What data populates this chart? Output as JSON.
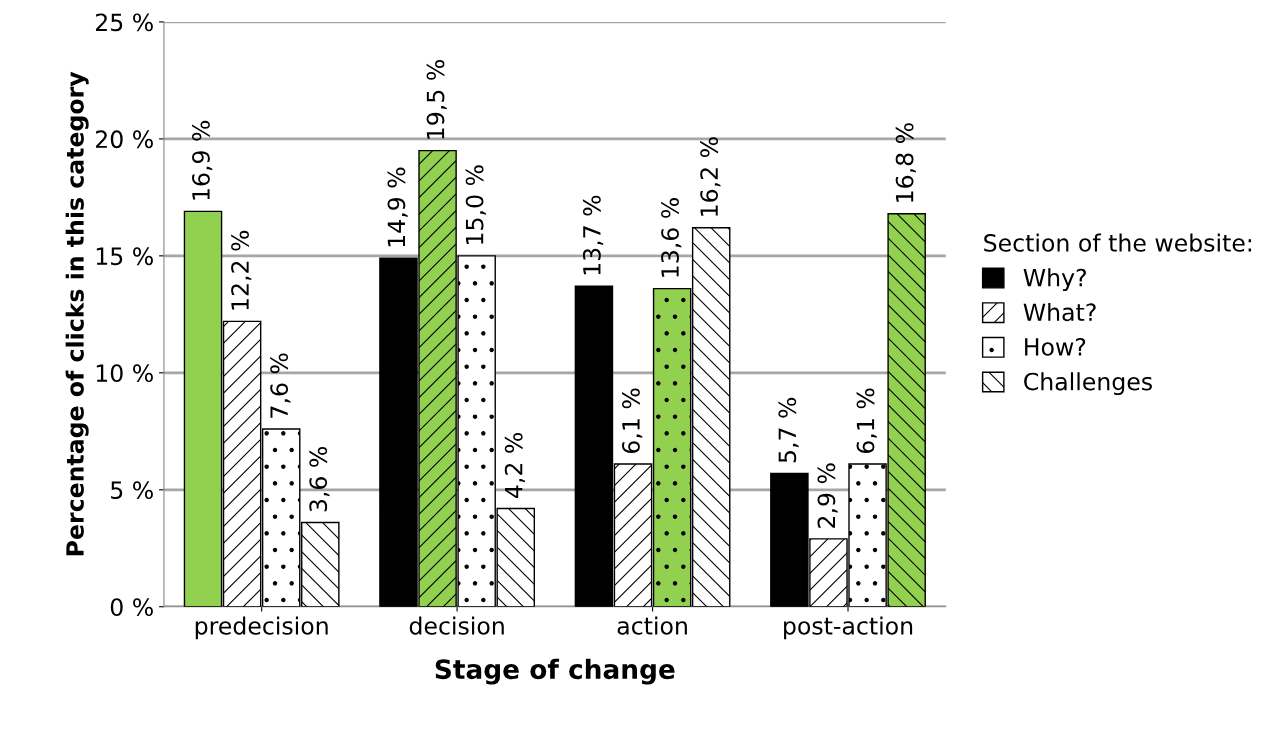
{
  "chart_data": {
    "type": "bar",
    "categories": [
      "predecision",
      "decision",
      "action",
      "post-action"
    ],
    "xlabel": "Stage of change",
    "ylabel": "Percentage of clicks in this category",
    "legend_title": "Section of the website:",
    "series": [
      {
        "name": "Why?",
        "color": "#000000",
        "colors": [
          "#92d050",
          "#000000",
          "#000000",
          "#000000"
        ],
        "values": [
          16.9,
          14.9,
          13.7,
          5.7
        ],
        "value_labels": [
          "16,9 %",
          "14,9 %",
          "13,7 %",
          "5,7 %"
        ]
      },
      {
        "name": "What?",
        "color": "#ffffff",
        "colors": [
          "#ffffff",
          "#92d050",
          "#ffffff",
          "#ffffff"
        ],
        "values": [
          12.2,
          19.5,
          6.1,
          2.9
        ],
        "value_labels": [
          "12,2 %",
          "19,5 %",
          "6,1 %",
          "2,9 %"
        ]
      },
      {
        "name": "How?",
        "color": "#ffffff",
        "colors": [
          "#ffffff",
          "#ffffff",
          "#92d050",
          "#ffffff"
        ],
        "values": [
          7.6,
          15.0,
          13.6,
          6.1
        ],
        "value_labels": [
          "7,6 %",
          "15,0 %",
          "13,6 %",
          "6,1 %"
        ]
      },
      {
        "name": "Challenges",
        "color": "#ffffff",
        "colors": [
          "#ffffff",
          "#ffffff",
          "#ffffff",
          "#92d050"
        ],
        "values": [
          3.6,
          4.2,
          16.2,
          16.8
        ],
        "value_labels": [
          "3,6 %",
          "4,2 %",
          "16,2 %",
          "16,8 %"
        ]
      }
    ],
    "ylim": [
      0,
      25
    ],
    "yticks": [
      {
        "value": 0,
        "label": "0 %"
      },
      {
        "value": 5,
        "label": "5 %"
      },
      {
        "value": 10,
        "label": "10 %"
      },
      {
        "value": 15,
        "label": "15 %"
      },
      {
        "value": 20,
        "label": "20 %"
      },
      {
        "value": 25,
        "label": "25 %"
      }
    ],
    "grid": "y",
    "legend": "right"
  }
}
